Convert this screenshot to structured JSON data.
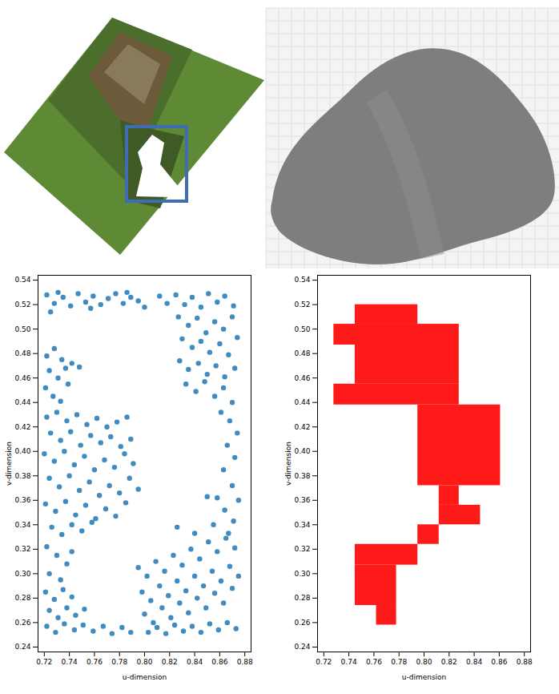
{
  "chart_data": [
    {
      "type": "scatter",
      "xlabel": "u-dimension",
      "ylabel": "v-dimension",
      "color": "#1f77b4",
      "xlim": [
        0.715,
        0.885
      ],
      "ylim": [
        0.236,
        0.544
      ],
      "xticks": [
        0.72,
        0.74,
        0.76,
        0.78,
        {
          "value": 0.8,
          "label": "0.80"
        },
        0.82,
        0.84,
        0.86,
        0.88
      ],
      "yticks": [
        0.24,
        0.26,
        0.28,
        {
          "value": 0.3,
          "label": "0.30"
        },
        0.32,
        0.34,
        0.36,
        0.38,
        {
          "value": 0.4,
          "label": "0.40"
        },
        0.42,
        0.44,
        0.46,
        0.48,
        {
          "value": 0.5,
          "label": "0.50"
        },
        0.52,
        0.54
      ],
      "points": [
        [
          0.722,
          0.528
        ],
        [
          0.728,
          0.521
        ],
        [
          0.735,
          0.526
        ],
        [
          0.741,
          0.519
        ],
        [
          0.747,
          0.529
        ],
        [
          0.753,
          0.522
        ],
        [
          0.759,
          0.527
        ],
        [
          0.765,
          0.52
        ],
        [
          0.771,
          0.525
        ],
        [
          0.777,
          0.529
        ],
        [
          0.783,
          0.521
        ],
        [
          0.789,
          0.526
        ],
        [
          0.795,
          0.523
        ],
        [
          0.8,
          0.518
        ],
        [
          0.731,
          0.53
        ],
        [
          0.757,
          0.517
        ],
        [
          0.786,
          0.53
        ],
        [
          0.725,
          0.514
        ],
        [
          0.812,
          0.527
        ],
        [
          0.818,
          0.521
        ],
        [
          0.825,
          0.528
        ],
        [
          0.832,
          0.52
        ],
        [
          0.838,
          0.526
        ],
        [
          0.845,
          0.518
        ],
        [
          0.851,
          0.529
        ],
        [
          0.858,
          0.522
        ],
        [
          0.864,
          0.527
        ],
        [
          0.871,
          0.519
        ],
        [
          0.827,
          0.51
        ],
        [
          0.835,
          0.503
        ],
        [
          0.842,
          0.509
        ],
        [
          0.849,
          0.497
        ],
        [
          0.856,
          0.506
        ],
        [
          0.863,
          0.5
        ],
        [
          0.87,
          0.51
        ],
        [
          0.83,
          0.492
        ],
        [
          0.838,
          0.485
        ],
        [
          0.845,
          0.49
        ],
        [
          0.852,
          0.481
        ],
        [
          0.86,
          0.488
        ],
        [
          0.867,
          0.479
        ],
        [
          0.874,
          0.493
        ],
        [
          0.828,
          0.474
        ],
        [
          0.835,
          0.467
        ],
        [
          0.843,
          0.472
        ],
        [
          0.85,
          0.463
        ],
        [
          0.857,
          0.47
        ],
        [
          0.864,
          0.461
        ],
        [
          0.872,
          0.468
        ],
        [
          0.833,
          0.455
        ],
        [
          0.841,
          0.449
        ],
        [
          0.848,
          0.457
        ],
        [
          0.856,
          0.445
        ],
        [
          0.863,
          0.452
        ],
        [
          0.87,
          0.44
        ],
        [
          0.861,
          0.432
        ],
        [
          0.868,
          0.425
        ],
        [
          0.874,
          0.415
        ],
        [
          0.866,
          0.405
        ],
        [
          0.872,
          0.395
        ],
        [
          0.863,
          0.385
        ],
        [
          0.87,
          0.372
        ],
        [
          0.875,
          0.36
        ],
        [
          0.864,
          0.352
        ],
        [
          0.871,
          0.343
        ],
        [
          0.867,
          0.333
        ],
        [
          0.858,
          0.362
        ],
        [
          0.722,
          0.478
        ],
        [
          0.728,
          0.484
        ],
        [
          0.734,
          0.475
        ],
        [
          0.724,
          0.466
        ],
        [
          0.731,
          0.46
        ],
        [
          0.737,
          0.468
        ],
        [
          0.742,
          0.472
        ],
        [
          0.748,
          0.469
        ],
        [
          0.721,
          0.452
        ],
        [
          0.727,
          0.445
        ],
        [
          0.733,
          0.441
        ],
        [
          0.739,
          0.455
        ],
        [
          0.722,
          0.428
        ],
        [
          0.73,
          0.432
        ],
        [
          0.738,
          0.425
        ],
        [
          0.746,
          0.43
        ],
        [
          0.754,
          0.422
        ],
        [
          0.762,
          0.427
        ],
        [
          0.77,
          0.42
        ],
        [
          0.778,
          0.424
        ],
        [
          0.786,
          0.428
        ],
        [
          0.725,
          0.415
        ],
        [
          0.733,
          0.409
        ],
        [
          0.741,
          0.416
        ],
        [
          0.749,
          0.405
        ],
        [
          0.757,
          0.413
        ],
        [
          0.765,
          0.407
        ],
        [
          0.773,
          0.412
        ],
        [
          0.781,
          0.404
        ],
        [
          0.789,
          0.41
        ],
        [
          0.72,
          0.398
        ],
        [
          0.728,
          0.392
        ],
        [
          0.736,
          0.4
        ],
        [
          0.744,
          0.389
        ],
        [
          0.752,
          0.396
        ],
        [
          0.76,
          0.385
        ],
        [
          0.768,
          0.393
        ],
        [
          0.776,
          0.387
        ],
        [
          0.784,
          0.398
        ],
        [
          0.791,
          0.39
        ],
        [
          0.724,
          0.378
        ],
        [
          0.732,
          0.371
        ],
        [
          0.74,
          0.38
        ],
        [
          0.748,
          0.368
        ],
        [
          0.756,
          0.375
        ],
        [
          0.764,
          0.364
        ],
        [
          0.772,
          0.372
        ],
        [
          0.78,
          0.366
        ],
        [
          0.788,
          0.378
        ],
        [
          0.795,
          0.369
        ],
        [
          0.721,
          0.357
        ],
        [
          0.729,
          0.351
        ],
        [
          0.737,
          0.359
        ],
        [
          0.745,
          0.348
        ],
        [
          0.753,
          0.356
        ],
        [
          0.761,
          0.345
        ],
        [
          0.769,
          0.353
        ],
        [
          0.777,
          0.347
        ],
        [
          0.785,
          0.358
        ],
        [
          0.726,
          0.338
        ],
        [
          0.734,
          0.332
        ],
        [
          0.742,
          0.34
        ],
        [
          0.75,
          0.335
        ],
        [
          0.758,
          0.342
        ],
        [
          0.722,
          0.322
        ],
        [
          0.73,
          0.315
        ],
        [
          0.738,
          0.308
        ],
        [
          0.724,
          0.3
        ],
        [
          0.733,
          0.295
        ],
        [
          0.742,
          0.318
        ],
        [
          0.721,
          0.285
        ],
        [
          0.728,
          0.279
        ],
        [
          0.735,
          0.287
        ],
        [
          0.742,
          0.281
        ],
        [
          0.724,
          0.27
        ],
        [
          0.731,
          0.264
        ],
        [
          0.738,
          0.272
        ],
        [
          0.745,
          0.266
        ],
        [
          0.752,
          0.271
        ],
        [
          0.722,
          0.257
        ],
        [
          0.729,
          0.252
        ],
        [
          0.736,
          0.259
        ],
        [
          0.744,
          0.254
        ],
        [
          0.751,
          0.258
        ],
        [
          0.759,
          0.253
        ],
        [
          0.767,
          0.257
        ],
        [
          0.774,
          0.251
        ],
        [
          0.782,
          0.256
        ],
        [
          0.789,
          0.252
        ],
        [
          0.795,
          0.305
        ],
        [
          0.802,
          0.298
        ],
        [
          0.809,
          0.31
        ],
        [
          0.816,
          0.302
        ],
        [
          0.823,
          0.315
        ],
        [
          0.83,
          0.307
        ],
        [
          0.837,
          0.32
        ],
        [
          0.844,
          0.312
        ],
        [
          0.851,
          0.326
        ],
        [
          0.858,
          0.318
        ],
        [
          0.865,
          0.329
        ],
        [
          0.872,
          0.321
        ],
        [
          0.798,
          0.285
        ],
        [
          0.805,
          0.278
        ],
        [
          0.812,
          0.29
        ],
        [
          0.819,
          0.282
        ],
        [
          0.826,
          0.294
        ],
        [
          0.833,
          0.286
        ],
        [
          0.84,
          0.298
        ],
        [
          0.847,
          0.29
        ],
        [
          0.854,
          0.302
        ],
        [
          0.861,
          0.294
        ],
        [
          0.868,
          0.306
        ],
        [
          0.875,
          0.298
        ],
        [
          0.8,
          0.267
        ],
        [
          0.807,
          0.26
        ],
        [
          0.814,
          0.272
        ],
        [
          0.821,
          0.264
        ],
        [
          0.828,
          0.276
        ],
        [
          0.835,
          0.268
        ],
        [
          0.842,
          0.28
        ],
        [
          0.849,
          0.272
        ],
        [
          0.856,
          0.284
        ],
        [
          0.863,
          0.276
        ],
        [
          0.87,
          0.288
        ],
        [
          0.803,
          0.252
        ],
        [
          0.81,
          0.256
        ],
        [
          0.817,
          0.251
        ],
        [
          0.824,
          0.258
        ],
        [
          0.831,
          0.253
        ],
        [
          0.838,
          0.257
        ],
        [
          0.845,
          0.252
        ],
        [
          0.852,
          0.259
        ],
        [
          0.859,
          0.254
        ],
        [
          0.866,
          0.26
        ],
        [
          0.873,
          0.255
        ],
        [
          0.826,
          0.338
        ],
        [
          0.85,
          0.363
        ],
        [
          0.84,
          0.333
        ],
        [
          0.855,
          0.34
        ]
      ]
    },
    {
      "type": "rect",
      "xlabel": "u-dimension",
      "ylabel": "v-dimension",
      "color": "#ff1a1a",
      "xlim": [
        0.715,
        0.885
      ],
      "ylim": [
        0.236,
        0.544
      ],
      "xticks": [
        0.72,
        0.74,
        0.76,
        0.78,
        {
          "value": 0.8,
          "label": "0.80"
        },
        0.82,
        0.84,
        0.86,
        0.88
      ],
      "yticks": [
        0.24,
        0.26,
        0.28,
        {
          "value": 0.3,
          "label": "0.30"
        },
        0.32,
        0.34,
        0.36,
        0.38,
        {
          "value": 0.4,
          "label": "0.40"
        },
        0.42,
        0.44,
        0.46,
        0.48,
        {
          "value": 0.5,
          "label": "0.50"
        },
        0.52,
        0.54
      ],
      "cells": [
        {
          "u": [
            0.745,
            0.795
          ],
          "v": [
            0.504,
            0.52
          ]
        },
        {
          "u": [
            0.728,
            0.828
          ],
          "v": [
            0.487,
            0.504
          ]
        },
        {
          "u": [
            0.745,
            0.828
          ],
          "v": [
            0.455,
            0.487
          ]
        },
        {
          "u": [
            0.728,
            0.828
          ],
          "v": [
            0.438,
            0.455
          ]
        },
        {
          "u": [
            0.795,
            0.861
          ],
          "v": [
            0.372,
            0.438
          ]
        },
        {
          "u": [
            0.812,
            0.828
          ],
          "v": [
            0.356,
            0.372
          ]
        },
        {
          "u": [
            0.812,
            0.845
          ],
          "v": [
            0.34,
            0.356
          ]
        },
        {
          "u": [
            0.795,
            0.812
          ],
          "v": [
            0.324,
            0.34
          ]
        },
        {
          "u": [
            0.745,
            0.795
          ],
          "v": [
            0.307,
            0.324
          ]
        },
        {
          "u": [
            0.745,
            0.778
          ],
          "v": [
            0.274,
            0.307
          ]
        },
        {
          "u": [
            0.762,
            0.778
          ],
          "v": [
            0.258,
            0.274
          ]
        }
      ]
    }
  ]
}
